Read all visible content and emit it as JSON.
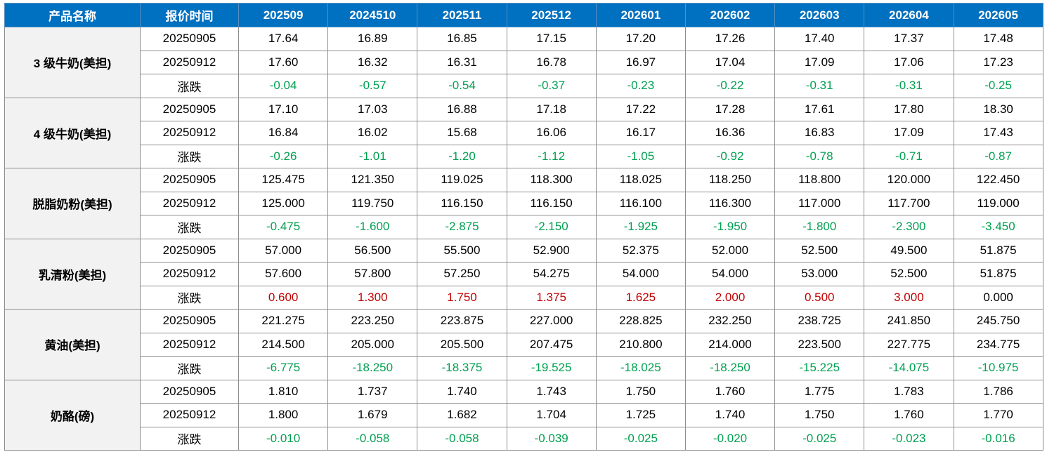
{
  "headers": [
    "产品名称",
    "报价时间",
    "202509",
    "2024510",
    "202511",
    "202512",
    "202601",
    "202602",
    "202603",
    "202604",
    "202605"
  ],
  "change_label": "涨跌",
  "colors": {
    "header_bg": "#0070c0",
    "up": "#c00000",
    "down": "#00a050",
    "product_bg": "#f2f2f2"
  },
  "products": [
    {
      "name": "3 级牛奶(美担)",
      "rows": [
        {
          "date": "20250905",
          "values": [
            "17.64",
            "16.89",
            "16.85",
            "17.15",
            "17.20",
            "17.26",
            "17.40",
            "17.37",
            "17.48"
          ]
        },
        {
          "date": "20250912",
          "values": [
            "17.60",
            "16.32",
            "16.31",
            "16.78",
            "16.97",
            "17.04",
            "17.09",
            "17.06",
            "17.23"
          ]
        }
      ],
      "change": [
        "-0.04",
        "-0.57",
        "-0.54",
        "-0.37",
        "-0.23",
        "-0.22",
        "-0.31",
        "-0.31",
        "-0.25"
      ]
    },
    {
      "name": "4 级牛奶(美担)",
      "rows": [
        {
          "date": "20250905",
          "values": [
            "17.10",
            "17.03",
            "16.88",
            "17.18",
            "17.22",
            "17.28",
            "17.61",
            "17.80",
            "18.30"
          ]
        },
        {
          "date": "20250912",
          "values": [
            "16.84",
            "16.02",
            "15.68",
            "16.06",
            "16.17",
            "16.36",
            "16.83",
            "17.09",
            "17.43"
          ]
        }
      ],
      "change": [
        "-0.26",
        "-1.01",
        "-1.20",
        "-1.12",
        "-1.05",
        "-0.92",
        "-0.78",
        "-0.71",
        "-0.87"
      ]
    },
    {
      "name": "脱脂奶粉(美担)",
      "rows": [
        {
          "date": "20250905",
          "values": [
            "125.475",
            "121.350",
            "119.025",
            "118.300",
            "118.025",
            "118.250",
            "118.800",
            "120.000",
            "122.450"
          ]
        },
        {
          "date": "20250912",
          "values": [
            "125.000",
            "119.750",
            "116.150",
            "116.150",
            "116.100",
            "116.300",
            "117.000",
            "117.700",
            "119.000"
          ]
        }
      ],
      "change": [
        "-0.475",
        "-1.600",
        "-2.875",
        "-2.150",
        "-1.925",
        "-1.950",
        "-1.800",
        "-2.300",
        "-3.450"
      ]
    },
    {
      "name": "乳清粉(美担)",
      "rows": [
        {
          "date": "20250905",
          "values": [
            "57.000",
            "56.500",
            "55.500",
            "52.900",
            "52.375",
            "52.000",
            "52.500",
            "49.500",
            "51.875"
          ]
        },
        {
          "date": "20250912",
          "values": [
            "57.600",
            "57.800",
            "57.250",
            "54.275",
            "54.000",
            "54.000",
            "53.000",
            "52.500",
            "51.875"
          ]
        }
      ],
      "change": [
        "0.600",
        "1.300",
        "1.750",
        "1.375",
        "1.625",
        "2.000",
        "0.500",
        "3.000",
        "0.000"
      ]
    },
    {
      "name": "黄油(美担)",
      "rows": [
        {
          "date": "20250905",
          "values": [
            "221.275",
            "223.250",
            "223.875",
            "227.000",
            "228.825",
            "232.250",
            "238.725",
            "241.850",
            "245.750"
          ]
        },
        {
          "date": "20250912",
          "values": [
            "214.500",
            "205.000",
            "205.500",
            "207.475",
            "210.800",
            "214.000",
            "223.500",
            "227.775",
            "234.775"
          ]
        }
      ],
      "change": [
        "-6.775",
        "-18.250",
        "-18.375",
        "-19.525",
        "-18.025",
        "-18.250",
        "-15.225",
        "-14.075",
        "-10.975"
      ]
    },
    {
      "name": "奶酪(磅)",
      "rows": [
        {
          "date": "20250905",
          "values": [
            "1.810",
            "1.737",
            "1.740",
            "1.743",
            "1.750",
            "1.760",
            "1.775",
            "1.783",
            "1.786"
          ]
        },
        {
          "date": "20250912",
          "values": [
            "1.800",
            "1.679",
            "1.682",
            "1.704",
            "1.725",
            "1.740",
            "1.750",
            "1.760",
            "1.770"
          ]
        }
      ],
      "change": [
        "-0.010",
        "-0.058",
        "-0.058",
        "-0.039",
        "-0.025",
        "-0.020",
        "-0.025",
        "-0.023",
        "-0.016"
      ]
    }
  ]
}
